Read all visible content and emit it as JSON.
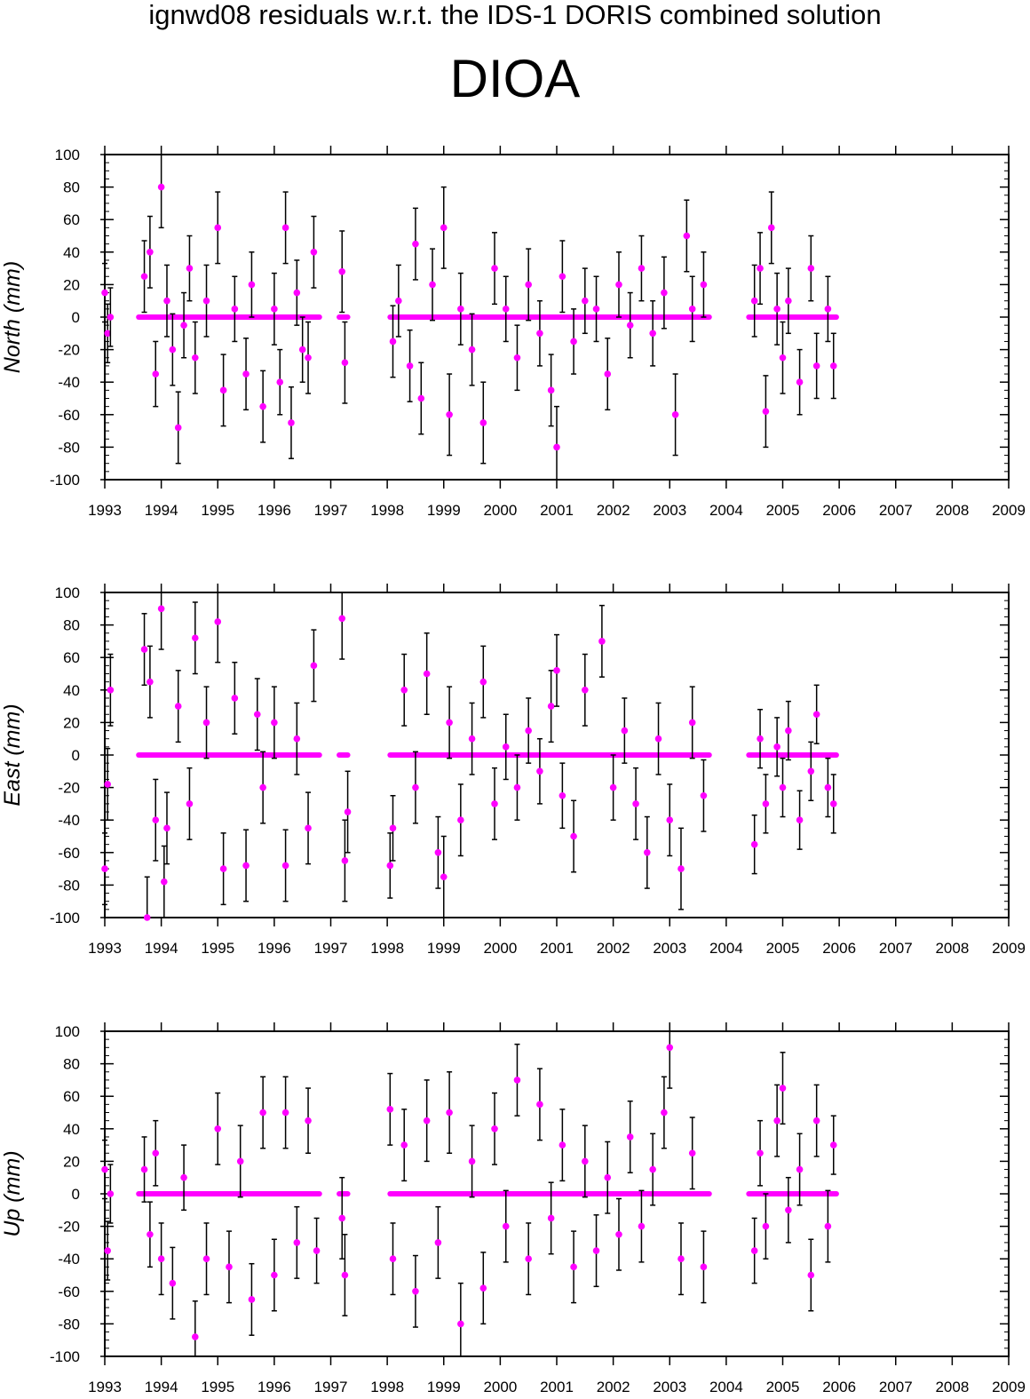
{
  "header": {
    "title": "ignwd08 residuals w.r.t. the IDS-1 DORIS combined solution",
    "station": "DIOA"
  },
  "colors": {
    "point": "#ff00ff",
    "errorbar": "#000000",
    "axis": "#000000"
  },
  "chart_data": [
    {
      "type": "scatter",
      "ylabel": "North (mm)",
      "xlim": [
        1993,
        2009
      ],
      "ylim": [
        -100,
        100
      ],
      "x_ticks": [
        1993,
        1994,
        1995,
        1996,
        1997,
        1998,
        1999,
        2000,
        2001,
        2002,
        2003,
        2004,
        2005,
        2006,
        2007,
        2008,
        2009
      ],
      "y_ticks": [
        -100,
        -80,
        -60,
        -40,
        -20,
        0,
        20,
        40,
        60,
        80,
        100
      ],
      "error_bars": true,
      "series": [
        {
          "x": [
            1993.0,
            1993.05,
            1993.1,
            1993.7,
            1993.8,
            1993.9,
            1994.0,
            1994.1,
            1994.2,
            1994.3,
            1994.4,
            1994.5,
            1994.6,
            1994.8,
            1995.0,
            1995.1,
            1995.3,
            1995.5,
            1995.6,
            1995.8,
            1996.0,
            1996.1,
            1996.2,
            1996.3,
            1996.4,
            1996.5,
            1996.6,
            1996.7,
            1997.2,
            1997.25,
            1998.1,
            1998.2,
            1998.4,
            1998.5,
            1998.6,
            1998.8,
            1999.0,
            1999.1,
            1999.3,
            1999.5,
            1999.7,
            1999.9,
            2000.1,
            2000.3,
            2000.5,
            2000.7,
            2000.9,
            2001.0,
            2001.1,
            2001.3,
            2001.5,
            2001.7,
            2001.9,
            2002.1,
            2002.3,
            2002.5,
            2002.7,
            2002.9,
            2003.1,
            2003.3,
            2003.4,
            2003.6,
            2004.5,
            2004.6,
            2004.7,
            2004.8,
            2004.9,
            2005.0,
            2005.1,
            2005.3,
            2005.5,
            2005.6,
            2005.8,
            2005.9
          ],
          "y": [
            15,
            -10,
            0,
            25,
            40,
            -35,
            80,
            10,
            -20,
            -68,
            -5,
            30,
            -25,
            10,
            55,
            -45,
            5,
            -35,
            20,
            -55,
            5,
            -40,
            55,
            -65,
            15,
            -20,
            -25,
            40,
            28,
            -28,
            -15,
            10,
            -30,
            45,
            -50,
            20,
            55,
            -60,
            5,
            -20,
            -65,
            30,
            5,
            -25,
            20,
            -10,
            -45,
            -80,
            25,
            -15,
            10,
            5,
            -35,
            20,
            -5,
            30,
            -10,
            15,
            -60,
            50,
            5,
            20,
            10,
            30,
            -58,
            55,
            5,
            -25,
            10,
            -40,
            30,
            -30,
            5,
            -30
          ],
          "err": [
            18,
            18,
            18,
            22,
            22,
            20,
            25,
            22,
            22,
            22,
            20,
            20,
            22,
            22,
            22,
            22,
            20,
            22,
            20,
            22,
            22,
            20,
            22,
            22,
            20,
            20,
            22,
            22,
            25,
            25,
            22,
            22,
            22,
            22,
            22,
            22,
            25,
            25,
            22,
            22,
            25,
            22,
            20,
            20,
            22,
            20,
            22,
            25,
            22,
            20,
            20,
            20,
            22,
            20,
            20,
            20,
            20,
            22,
            25,
            22,
            20,
            20,
            22,
            22,
            22,
            22,
            22,
            22,
            20,
            20,
            20,
            20,
            20,
            20
          ]
        }
      ]
    },
    {
      "type": "scatter",
      "ylabel": "East (mm)",
      "xlim": [
        1993,
        2009
      ],
      "ylim": [
        -100,
        100
      ],
      "x_ticks": [
        1993,
        1994,
        1995,
        1996,
        1997,
        1998,
        1999,
        2000,
        2001,
        2002,
        2003,
        2004,
        2005,
        2006,
        2007,
        2008,
        2009
      ],
      "y_ticks": [
        -100,
        -80,
        -60,
        -40,
        -20,
        0,
        20,
        40,
        60,
        80,
        100
      ],
      "error_bars": true,
      "series": [
        {
          "x": [
            1993.0,
            1993.05,
            1993.1,
            1993.7,
            1993.75,
            1993.8,
            1993.9,
            1994.0,
            1994.05,
            1994.1,
            1994.3,
            1994.5,
            1994.6,
            1994.8,
            1995.0,
            1995.1,
            1995.3,
            1995.5,
            1995.7,
            1995.8,
            1996.0,
            1996.2,
            1996.4,
            1996.6,
            1996.7,
            1997.2,
            1997.25,
            1997.3,
            1998.05,
            1998.1,
            1998.3,
            1998.5,
            1998.7,
            1998.9,
            1999.0,
            1999.1,
            1999.3,
            1999.5,
            1999.7,
            1999.9,
            2000.1,
            2000.3,
            2000.5,
            2000.7,
            2000.9,
            2001.0,
            2001.1,
            2001.3,
            2001.5,
            2001.8,
            2002.0,
            2002.2,
            2002.4,
            2002.6,
            2002.8,
            2003.0,
            2003.2,
            2003.4,
            2003.6,
            2004.5,
            2004.6,
            2004.7,
            2004.9,
            2005.0,
            2005.1,
            2005.3,
            2005.5,
            2005.6,
            2005.8,
            2005.9
          ],
          "y": [
            -70,
            -18,
            40,
            65,
            -100,
            45,
            -40,
            90,
            -78,
            -45,
            30,
            -30,
            72,
            20,
            82,
            -70,
            35,
            -68,
            25,
            -20,
            20,
            -68,
            10,
            -45,
            55,
            84,
            -65,
            -35,
            -68,
            -45,
            40,
            -20,
            50,
            -60,
            -75,
            20,
            -40,
            10,
            45,
            -30,
            5,
            -20,
            15,
            -10,
            30,
            52,
            -25,
            -50,
            40,
            70,
            -20,
            15,
            -30,
            -60,
            10,
            -40,
            -70,
            20,
            -25,
            -55,
            10,
            -30,
            5,
            -20,
            15,
            -40,
            -10,
            25,
            -20,
            -30
          ],
          "err": [
            22,
            22,
            22,
            22,
            25,
            22,
            25,
            25,
            22,
            22,
            22,
            22,
            22,
            22,
            25,
            22,
            22,
            22,
            22,
            22,
            22,
            22,
            22,
            22,
            22,
            25,
            25,
            25,
            20,
            20,
            22,
            22,
            25,
            22,
            25,
            22,
            22,
            22,
            22,
            22,
            20,
            20,
            20,
            20,
            22,
            22,
            20,
            22,
            22,
            22,
            20,
            20,
            22,
            22,
            22,
            22,
            25,
            22,
            22,
            18,
            18,
            18,
            18,
            18,
            18,
            18,
            18,
            18,
            18,
            18
          ]
        }
      ]
    },
    {
      "type": "scatter",
      "ylabel": "Up (mm)",
      "xlim": [
        1993,
        2009
      ],
      "ylim": [
        -100,
        100
      ],
      "x_ticks": [
        1993,
        1994,
        1995,
        1996,
        1997,
        1998,
        1999,
        2000,
        2001,
        2002,
        2003,
        2004,
        2005,
        2006,
        2007,
        2008,
        2009
      ],
      "y_ticks": [
        -100,
        -80,
        -60,
        -40,
        -20,
        0,
        20,
        40,
        60,
        80,
        100
      ],
      "error_bars": true,
      "series": [
        {
          "x": [
            1993.0,
            1993.05,
            1993.1,
            1993.7,
            1993.8,
            1993.9,
            1994.0,
            1994.2,
            1994.4,
            1994.6,
            1994.8,
            1995.0,
            1995.2,
            1995.4,
            1995.6,
            1995.8,
            1996.0,
            1996.2,
            1996.4,
            1996.6,
            1996.75,
            1997.2,
            1997.25,
            1998.05,
            1998.1,
            1998.3,
            1998.5,
            1998.7,
            1998.9,
            1999.1,
            1999.3,
            1999.5,
            1999.7,
            1999.9,
            2000.1,
            2000.3,
            2000.5,
            2000.7,
            2000.9,
            2001.1,
            2001.3,
            2001.5,
            2001.7,
            2001.9,
            2002.1,
            2002.3,
            2002.5,
            2002.7,
            2002.9,
            2003.0,
            2003.2,
            2003.4,
            2003.6,
            2004.5,
            2004.6,
            2004.7,
            2004.9,
            2005.0,
            2005.1,
            2005.3,
            2005.5,
            2005.6,
            2005.8,
            2005.9
          ],
          "y": [
            15,
            -35,
            0,
            15,
            -25,
            25,
            -40,
            -55,
            10,
            -88,
            -40,
            40,
            -45,
            20,
            -65,
            50,
            -50,
            50,
            -30,
            45,
            -35,
            -15,
            -50,
            52,
            -40,
            30,
            -60,
            45,
            -30,
            50,
            -80,
            20,
            -58,
            40,
            -20,
            70,
            -40,
            55,
            -15,
            30,
            -45,
            20,
            -35,
            10,
            -25,
            35,
            -20,
            15,
            50,
            90,
            -40,
            25,
            -45,
            -35,
            25,
            -20,
            45,
            65,
            -10,
            15,
            -50,
            45,
            -20,
            30
          ],
          "err": [
            18,
            18,
            18,
            20,
            20,
            20,
            22,
            22,
            20,
            22,
            22,
            22,
            22,
            22,
            22,
            22,
            22,
            22,
            22,
            20,
            20,
            25,
            25,
            22,
            22,
            22,
            22,
            25,
            22,
            25,
            25,
            22,
            22,
            22,
            22,
            22,
            22,
            22,
            22,
            22,
            22,
            22,
            22,
            22,
            22,
            22,
            22,
            22,
            22,
            25,
            22,
            22,
            22,
            20,
            20,
            20,
            22,
            22,
            20,
            22,
            22,
            22,
            22,
            18
          ]
        }
      ]
    }
  ]
}
